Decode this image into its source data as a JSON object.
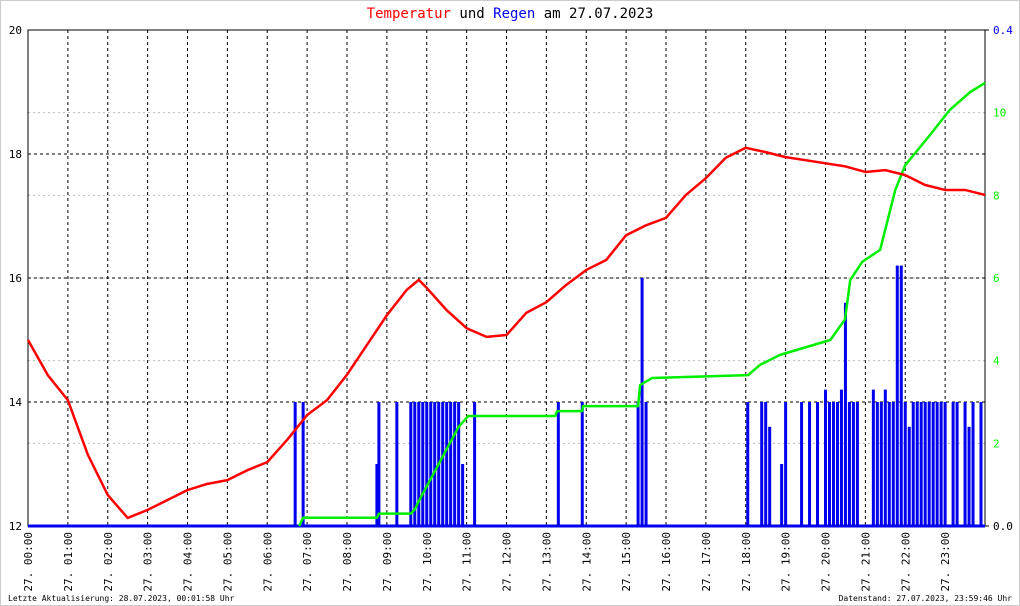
{
  "chart_data": {
    "type": "line",
    "title_words": [
      "und",
      "am 27.07.2023"
    ],
    "footer_left": "Letzte Aktualisierung: 28.07.2023, 00:01:58 Uhr",
    "footer_right": "Datenstand: 27.07.2023, 23:59:46 Uhr",
    "xlim": [
      0,
      24
    ],
    "xticks": [
      {
        "value": 0,
        "label": "27. 00:00"
      },
      {
        "value": 1,
        "label": "27. 01:00"
      },
      {
        "value": 2,
        "label": "27. 02:00"
      },
      {
        "value": 3,
        "label": "27. 03:00"
      },
      {
        "value": 4,
        "label": "27. 04:00"
      },
      {
        "value": 5,
        "label": "27. 05:00"
      },
      {
        "value": 6,
        "label": "27. 06:00"
      },
      {
        "value": 7,
        "label": "27. 07:00"
      },
      {
        "value": 8,
        "label": "27. 08:00"
      },
      {
        "value": 9,
        "label": "27. 09:00"
      },
      {
        "value": 10,
        "label": "27. 10:00"
      },
      {
        "value": 11,
        "label": "27. 11:00"
      },
      {
        "value": 12,
        "label": "27. 12:00"
      },
      {
        "value": 13,
        "label": "27. 13:00"
      },
      {
        "value": 14,
        "label": "27. 14:00"
      },
      {
        "value": 15,
        "label": "27. 15:00"
      },
      {
        "value": 16,
        "label": "27. 16:00"
      },
      {
        "value": 17,
        "label": "27. 17:00"
      },
      {
        "value": 18,
        "label": "27. 18:00"
      },
      {
        "value": 19,
        "label": "27. 19:00"
      },
      {
        "value": 20,
        "label": "27. 20:00"
      },
      {
        "value": 21,
        "label": "27. 21:00"
      },
      {
        "value": 22,
        "label": "27. 22:00"
      },
      {
        "value": 23,
        "label": "27. 23:00"
      }
    ],
    "ylim": [
      12,
      20
    ],
    "yticks": [
      12,
      14,
      16,
      18,
      20
    ],
    "y2lim": [
      0,
      0.4
    ],
    "y2ticks": [
      {
        "value": 0,
        "label": "0.0"
      },
      {
        "value": 0.4,
        "label": "0.4"
      }
    ],
    "y3lim": [
      0,
      12
    ],
    "y3ticks": [
      2,
      4,
      6,
      8,
      10
    ],
    "grid": true,
    "series": [
      {
        "name": "Temperatur",
        "color": "#ff0000",
        "x": [
          0,
          0.5,
          1,
          1.5,
          2,
          2.5,
          3,
          3.5,
          4,
          4.5,
          5,
          5.5,
          6,
          6.5,
          7,
          7.5,
          8,
          8.5,
          9,
          9.5,
          9.8,
          10,
          10.5,
          11,
          11.5,
          12,
          12.5,
          13,
          13.5,
          14,
          14.5,
          15,
          15.5,
          16,
          16.5,
          17,
          17.5,
          18,
          18.5,
          19,
          19.5,
          20,
          20.5,
          21,
          21.5,
          22,
          22.5,
          23,
          23.5,
          24
        ],
        "values": [
          15.0,
          14.43,
          14.03,
          13.15,
          12.5,
          12.13,
          12.26,
          12.42,
          12.58,
          12.68,
          12.74,
          12.9,
          13.03,
          13.39,
          13.79,
          14.03,
          14.44,
          14.92,
          15.4,
          15.81,
          15.97,
          15.84,
          15.48,
          15.19,
          15.05,
          15.08,
          15.44,
          15.61,
          15.89,
          16.13,
          16.29,
          16.69,
          16.85,
          16.97,
          17.34,
          17.61,
          17.94,
          18.1,
          18.03,
          17.95,
          17.9,
          17.85,
          17.8,
          17.71,
          17.74,
          17.66,
          17.5,
          17.42,
          17.42,
          17.34
        ]
      },
      {
        "name": "Regen",
        "color": "#0000ee",
        "type": "bar",
        "axis": "y2",
        "x": [
          6.7,
          6.9,
          8.75,
          8.8,
          9.25,
          9.6,
          9.7,
          9.8,
          9.9,
          10.0,
          10.1,
          10.2,
          10.3,
          10.4,
          10.5,
          10.6,
          10.7,
          10.8,
          10.9,
          11.2,
          13.3,
          13.9,
          15.3,
          15.4,
          15.5,
          18.05,
          18.4,
          18.5,
          18.6,
          18.9,
          19.0,
          19.4,
          19.6,
          19.8,
          20.0,
          20.1,
          20.2,
          20.3,
          20.4,
          20.5,
          20.6,
          20.7,
          20.8,
          21.2,
          21.3,
          21.4,
          21.5,
          21.6,
          21.7,
          21.8,
          21.9,
          22.0,
          22.1,
          22.2,
          22.3,
          22.4,
          22.5,
          22.6,
          22.7,
          22.8,
          22.9,
          23.0,
          23.2,
          23.3,
          23.5,
          23.6,
          23.7,
          23.9
        ],
        "values": [
          0.1,
          0.1,
          0.05,
          0.1,
          0.1,
          0.1,
          0.1,
          0.1,
          0.1,
          0.1,
          0.1,
          0.1,
          0.1,
          0.1,
          0.1,
          0.1,
          0.1,
          0.1,
          0.05,
          0.1,
          0.1,
          0.1,
          0.1,
          0.2,
          0.1,
          0.1,
          0.1,
          0.1,
          0.08,
          0.05,
          0.1,
          0.1,
          0.1,
          0.1,
          0.11,
          0.1,
          0.1,
          0.1,
          0.11,
          0.18,
          0.1,
          0.1,
          0.1,
          0.11,
          0.1,
          0.1,
          0.11,
          0.1,
          0.1,
          0.21,
          0.21,
          0.1,
          0.08,
          0.1,
          0.1,
          0.1,
          0.1,
          0.1,
          0.1,
          0.1,
          0.1,
          0.1,
          0.1,
          0.1,
          0.1,
          0.08,
          0.1,
          0.1
        ]
      },
      {
        "color": "#00ee00",
        "axis": "y3",
        "x": [
          6.8,
          6.9,
          8.75,
          8.8,
          9.6,
          9.7,
          9.8,
          10.3,
          10.8,
          11.04,
          13.22,
          13.27,
          13.9,
          13.92,
          15.3,
          15.35,
          15.65,
          18.06,
          18.36,
          18.86,
          20.12,
          20.49,
          20.62,
          20.92,
          21.37,
          21.75,
          22.0,
          22.62,
          23.12,
          23.63,
          24
        ],
        "values": [
          0,
          0.2,
          0.2,
          0.3,
          0.3,
          0.4,
          0.6,
          1.5,
          2.4,
          2.66,
          2.66,
          2.78,
          2.78,
          2.9,
          2.9,
          3.41,
          3.58,
          3.65,
          3.9,
          4.14,
          4.5,
          5.0,
          5.95,
          6.39,
          6.68,
          8.13,
          8.73,
          9.46,
          10.07,
          10.5,
          10.72
        ]
      }
    ]
  }
}
